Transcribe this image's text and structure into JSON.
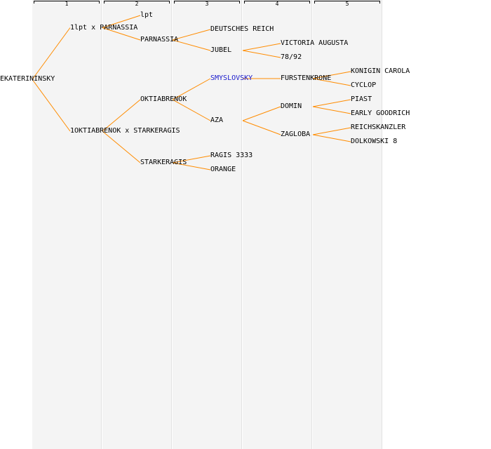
{
  "colors": {
    "link": "#ff8c00",
    "text": "#000000",
    "highlight": "#1a1acc",
    "column_bg": "#f4f4f4"
  },
  "generations": [
    "1",
    "2",
    "3",
    "4",
    "5"
  ],
  "tree": {
    "label": "EKATERININSKY",
    "children": [
      {
        "label": "1lpt x PARNASSIA",
        "children": [
          {
            "label": "lpt"
          },
          {
            "label": "PARNASSIA",
            "children": [
              {
                "label": "DEUTSCHES REICH"
              },
              {
                "label": "JUBEL",
                "children": [
                  {
                    "label": "VICTORIA AUGUSTA"
                  },
                  {
                    "label": "78/92"
                  }
                ]
              }
            ]
          }
        ]
      },
      {
        "label": "1OKTIABRENOK x STARKERAGIS",
        "children": [
          {
            "label": "OKTIABRENOK",
            "children": [
              {
                "label": "SMYSLOVSKY",
                "highlight": true,
                "children": [
                  {
                    "label": "FURSTENKRONE",
                    "children": [
                      {
                        "label": "KONIGIN CAROLA"
                      },
                      {
                        "label": "CYCLOP"
                      }
                    ]
                  }
                ]
              },
              {
                "label": "AZA",
                "children": [
                  {
                    "label": "DOMIN",
                    "children": [
                      {
                        "label": "PIAST"
                      },
                      {
                        "label": "EARLY GOODRICH"
                      }
                    ]
                  },
                  {
                    "label": "ZAGLOBA",
                    "children": [
                      {
                        "label": "REICHSKANZLER"
                      },
                      {
                        "label": "DOLKOWSKI 8"
                      }
                    ]
                  }
                ]
              }
            ]
          },
          {
            "label": "STARKERAGIS",
            "children": [
              {
                "label": "RAGIS 3333"
              },
              {
                "label": "ORANGE"
              }
            ]
          }
        ]
      }
    ]
  }
}
